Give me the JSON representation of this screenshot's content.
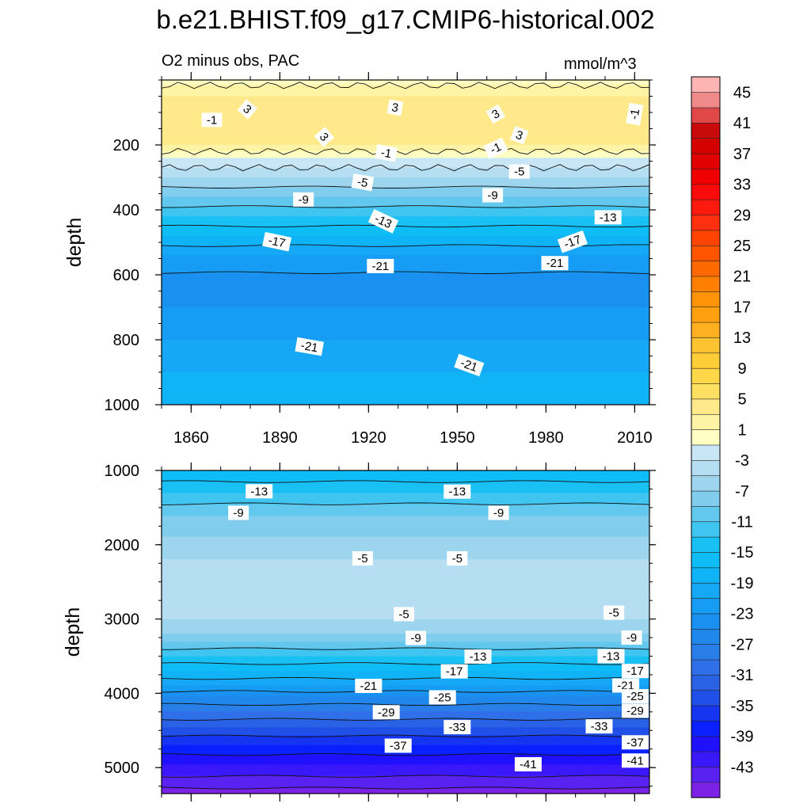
{
  "title": "b.e21.BHIST.f09_g17.CMIP6-historical.002",
  "subtitle_left": "O2 minus obs, PAC",
  "subtitle_right": "mmol/m^3",
  "chart_data": [
    {
      "type": "heatmap",
      "panel": "upper",
      "ylabel": "depth",
      "xlim": [
        1850,
        2015
      ],
      "ylim": [
        1000,
        0
      ],
      "xticks": [
        1860,
        1890,
        1920,
        1950,
        1980,
        2010
      ],
      "yticks": [
        200,
        400,
        600,
        800,
        1000
      ],
      "depth_profile": [
        {
          "depth": 0,
          "value": 0
        },
        {
          "depth": 50,
          "value": 3
        },
        {
          "depth": 150,
          "value": 5
        },
        {
          "depth": 200,
          "value": 3
        },
        {
          "depth": 240,
          "value": -1
        },
        {
          "depth": 300,
          "value": -5
        },
        {
          "depth": 360,
          "value": -9
        },
        {
          "depth": 420,
          "value": -13
        },
        {
          "depth": 480,
          "value": -17
        },
        {
          "depth": 540,
          "value": -21
        },
        {
          "depth": 620,
          "value": -24
        },
        {
          "depth": 700,
          "value": -23
        },
        {
          "depth": 800,
          "value": -21
        },
        {
          "depth": 900,
          "value": -19
        },
        {
          "depth": 1000,
          "value": -17
        }
      ],
      "contour_labels": [
        {
          "year": 1879,
          "depth": 90,
          "text": "3",
          "angle": 40
        },
        {
          "year": 1929,
          "depth": 85,
          "text": "3",
          "angle": 10
        },
        {
          "year": 1963,
          "depth": 105,
          "text": "3",
          "angle": -30
        },
        {
          "year": 1971,
          "depth": 170,
          "text": "3",
          "angle": 20
        },
        {
          "year": 1905,
          "depth": 175,
          "text": "3",
          "angle": 50
        },
        {
          "year": 1926,
          "depth": 225,
          "text": "-1",
          "angle": 10
        },
        {
          "year": 1963,
          "depth": 210,
          "text": "-1",
          "angle": -25
        },
        {
          "year": 1971,
          "depth": 282,
          "text": "-5",
          "angle": 0
        },
        {
          "year": 1918,
          "depth": 315,
          "text": "-5",
          "angle": 10
        },
        {
          "year": 1867,
          "depth": 123,
          "text": "-1",
          "angle": 0
        },
        {
          "year": 2010,
          "depth": 105,
          "text": "-1",
          "angle": -80
        },
        {
          "year": 1962,
          "depth": 355,
          "text": "-9",
          "angle": 0
        },
        {
          "year": 1898,
          "depth": 368,
          "text": "-9",
          "angle": 0
        },
        {
          "year": 1925,
          "depth": 435,
          "text": "-13",
          "angle": 25
        },
        {
          "year": 2001,
          "depth": 423,
          "text": "-13",
          "angle": 0
        },
        {
          "year": 1889,
          "depth": 498,
          "text": "-17",
          "angle": 12
        },
        {
          "year": 1989,
          "depth": 498,
          "text": "-17",
          "angle": -20
        },
        {
          "year": 1924,
          "depth": 573,
          "text": "-21",
          "angle": 0
        },
        {
          "year": 1983,
          "depth": 564,
          "text": "-21",
          "angle": 0
        },
        {
          "year": 1900,
          "depth": 821,
          "text": "-21",
          "angle": 10
        },
        {
          "year": 1954,
          "depth": 878,
          "text": "-21",
          "angle": 20
        }
      ]
    },
    {
      "type": "heatmap",
      "panel": "lower",
      "ylabel": "depth",
      "xlim": [
        1850,
        2015
      ],
      "ylim": [
        5350,
        1000
      ],
      "xticks": [
        1860,
        1890,
        1920,
        1950,
        1980,
        2010
      ],
      "yticks": [
        1000,
        2000,
        3000,
        4000,
        5000
      ],
      "depth_profile": [
        {
          "depth": 1000,
          "value": -17
        },
        {
          "depth": 1300,
          "value": -13
        },
        {
          "depth": 1600,
          "value": -9
        },
        {
          "depth": 1900,
          "value": -7
        },
        {
          "depth": 2200,
          "value": -5
        },
        {
          "depth": 2600,
          "value": -4
        },
        {
          "depth": 3000,
          "value": -5
        },
        {
          "depth": 3200,
          "value": -7
        },
        {
          "depth": 3300,
          "value": -9
        },
        {
          "depth": 3500,
          "value": -13
        },
        {
          "depth": 3700,
          "value": -17
        },
        {
          "depth": 3900,
          "value": -21
        },
        {
          "depth": 4050,
          "value": -25
        },
        {
          "depth": 4250,
          "value": -29
        },
        {
          "depth": 4450,
          "value": -33
        },
        {
          "depth": 4700,
          "value": -37
        },
        {
          "depth": 4950,
          "value": -41
        },
        {
          "depth": 5200,
          "value": -44
        },
        {
          "depth": 5350,
          "value": -46
        }
      ],
      "contour_labels": [
        {
          "year": 1883,
          "depth": 1280,
          "text": "-13",
          "angle": 0
        },
        {
          "year": 1950,
          "depth": 1285,
          "text": "-13",
          "angle": 0
        },
        {
          "year": 1876,
          "depth": 1570,
          "text": "-9",
          "angle": 0
        },
        {
          "year": 1964,
          "depth": 1570,
          "text": "-9",
          "angle": 0
        },
        {
          "year": 1918,
          "depth": 2185,
          "text": "-5",
          "angle": 0
        },
        {
          "year": 1950,
          "depth": 2185,
          "text": "-5",
          "angle": 0
        },
        {
          "year": 1932,
          "depth": 2935,
          "text": "-5",
          "angle": 0
        },
        {
          "year": 2003,
          "depth": 2915,
          "text": "-5",
          "angle": 0
        },
        {
          "year": 1936,
          "depth": 3255,
          "text": "-9",
          "angle": 0
        },
        {
          "year": 2009,
          "depth": 3250,
          "text": "-9",
          "angle": 0
        },
        {
          "year": 1957,
          "depth": 3505,
          "text": "-13",
          "angle": 0
        },
        {
          "year": 2002,
          "depth": 3500,
          "text": "-13",
          "angle": 0
        },
        {
          "year": 1949,
          "depth": 3705,
          "text": "-17",
          "angle": 0
        },
        {
          "year": 2021,
          "depth": 3700,
          "text": "-17",
          "angle": 0
        },
        {
          "year": 1920,
          "depth": 3900,
          "text": "-21",
          "angle": 0
        },
        {
          "year": 2007,
          "depth": 3895,
          "text": "-21",
          "angle": 0
        },
        {
          "year": 1945,
          "depth": 4055,
          "text": "-25",
          "angle": 0
        },
        {
          "year": 2046,
          "depth": 4040,
          "text": "-25",
          "angle": 0
        },
        {
          "year": 1926,
          "depth": 4255,
          "text": "-29",
          "angle": 0
        },
        {
          "year": 2024,
          "depth": 4235,
          "text": "-29",
          "angle": 0
        },
        {
          "year": 1950,
          "depth": 4455,
          "text": "-33",
          "angle": 0
        },
        {
          "year": 1998,
          "depth": 4445,
          "text": "-33",
          "angle": 0
        },
        {
          "year": 1930,
          "depth": 4705,
          "text": "-37",
          "angle": 0
        },
        {
          "year": 2043,
          "depth": 4660,
          "text": "-37",
          "angle": 0
        },
        {
          "year": 1974,
          "depth": 4955,
          "text": "-41",
          "angle": 0
        },
        {
          "year": 2036,
          "depth": 4905,
          "text": "-41",
          "angle": 0
        }
      ]
    }
  ],
  "colorbar": {
    "levels": [
      -47,
      -45,
      -43,
      -41,
      -39,
      -37,
      -35,
      -33,
      -31,
      -29,
      -27,
      -25,
      -23,
      -21,
      -19,
      -17,
      -15,
      -13,
      -11,
      -9,
      -7,
      -5,
      -3,
      -1,
      1,
      3,
      5,
      7,
      9,
      11,
      13,
      15,
      17,
      19,
      21,
      23,
      25,
      27,
      29,
      31,
      33,
      35,
      37,
      39,
      41,
      43,
      45,
      47
    ],
    "labels": [
      "45",
      "41",
      "37",
      "33",
      "29",
      "25",
      "21",
      "17",
      "13",
      "9",
      "5",
      "1",
      "-3",
      "-7",
      "-11",
      "-15",
      "-19",
      "-23",
      "-27",
      "-31",
      "-35",
      "-39",
      "-43"
    ],
    "label_values": [
      45,
      41,
      37,
      33,
      29,
      25,
      21,
      17,
      13,
      9,
      5,
      1,
      -3,
      -7,
      -11,
      -15,
      -19,
      -23,
      -27,
      -31,
      -35,
      -39,
      -43
    ],
    "colors": [
      "#7b22e6",
      "#5a22f0",
      "#3a18fa",
      "#1f10ff",
      "#0a20ff",
      "#1535f0",
      "#2050e8",
      "#2a62e6",
      "#2f70e8",
      "#2a7ee8",
      "#2088ec",
      "#1a90f0",
      "#179cf4",
      "#16a8f6",
      "#10b4f6",
      "#0ebcf6",
      "#18c0f4",
      "#40c4f0",
      "#62c8ee",
      "#80cdee",
      "#9ed5ee",
      "#b6def2",
      "#c8e6f6",
      "#ffffc4",
      "#fff4a6",
      "#ffe98a",
      "#ffe060",
      "#ffd84a",
      "#ffcd38",
      "#ffc230",
      "#ffb020",
      "#ffa010",
      "#ff9408",
      "#ff8000",
      "#ff6a00",
      "#ff5500",
      "#ff4400",
      "#ff3010",
      "#ff1a10",
      "#ff0a0a",
      "#f00000",
      "#e00000",
      "#d40000",
      "#c80a0a",
      "#e04848",
      "#f08a8a",
      "#ffb4b4"
    ]
  }
}
